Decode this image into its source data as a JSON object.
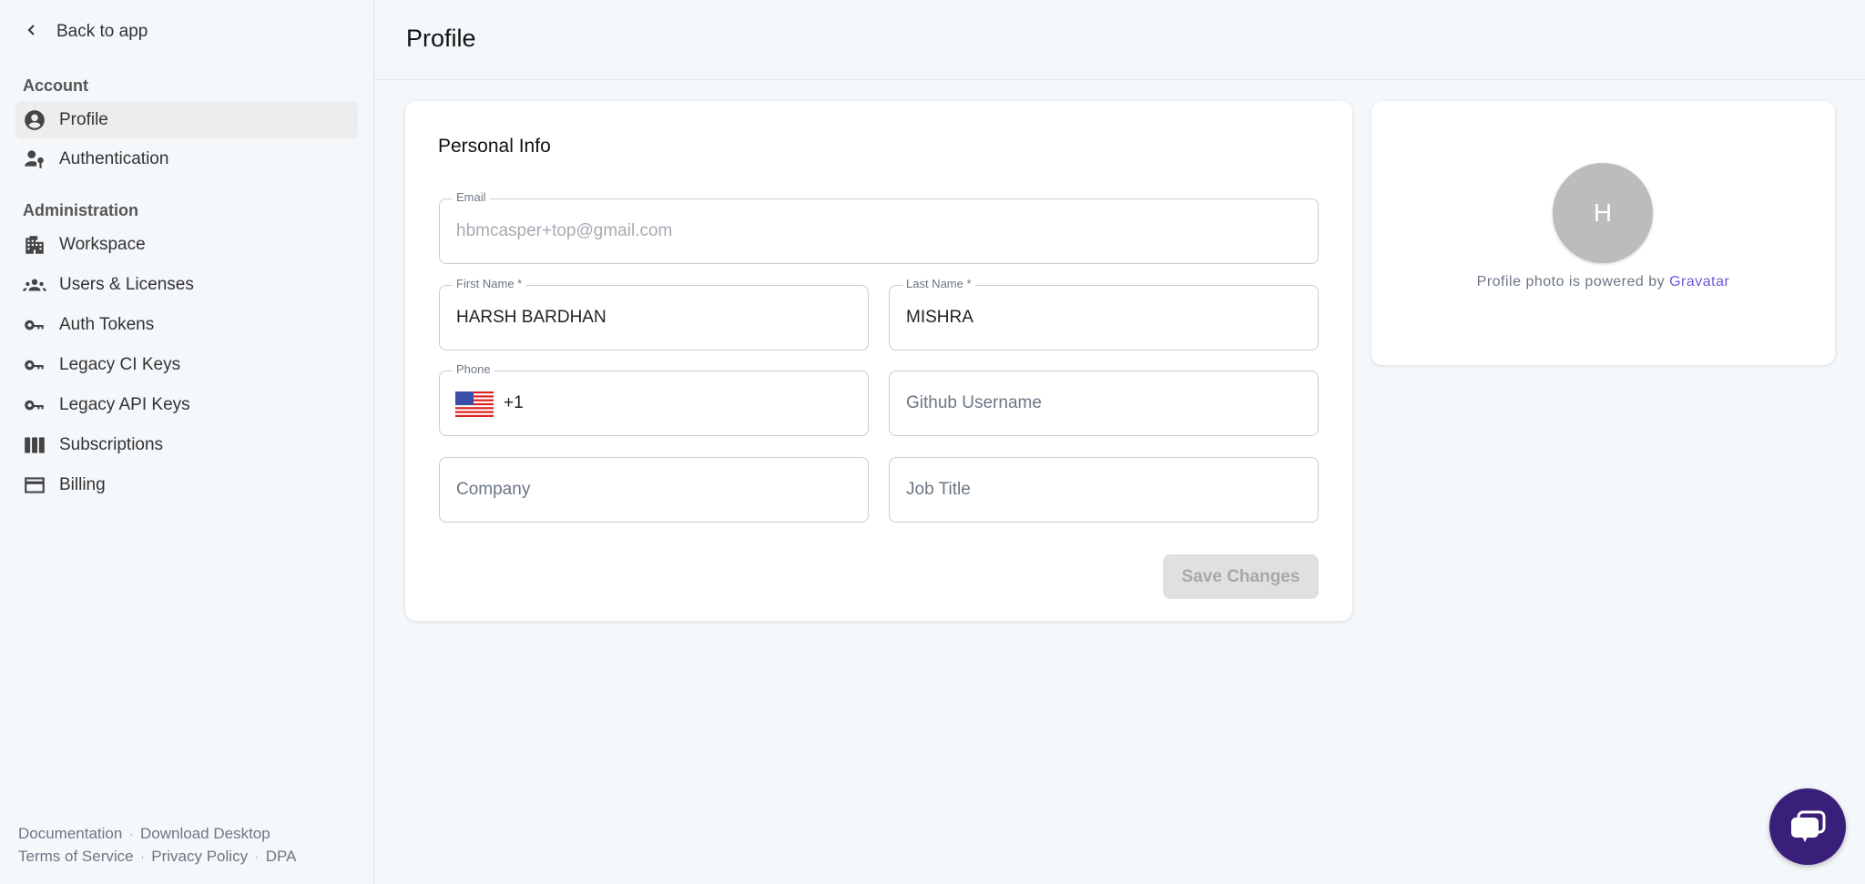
{
  "sidebar": {
    "back_label": "Back to app",
    "account_heading": "Account",
    "admin_heading": "Administration",
    "account_items": [
      {
        "label": "Profile",
        "icon": "account-circle-icon",
        "active": true
      },
      {
        "label": "Authentication",
        "icon": "user-key-icon"
      }
    ],
    "admin_items": [
      {
        "label": "Workspace",
        "icon": "building-icon"
      },
      {
        "label": "Users & Licenses",
        "icon": "group-icon"
      },
      {
        "label": "Auth Tokens",
        "icon": "key-icon"
      },
      {
        "label": "Legacy CI Keys",
        "icon": "key-icon"
      },
      {
        "label": "Legacy API Keys",
        "icon": "key-icon"
      },
      {
        "label": "Subscriptions",
        "icon": "columns-icon"
      },
      {
        "label": "Billing",
        "icon": "credit-card-icon"
      }
    ],
    "footer": {
      "documentation": "Documentation",
      "download": "Download Desktop",
      "terms": "Terms of Service",
      "privacy": "Privacy Policy",
      "dpa": "DPA",
      "separator": "·"
    }
  },
  "header": {
    "title": "Profile"
  },
  "personal_info": {
    "title": "Personal Info",
    "email": {
      "label": "Email",
      "value": "hbmcasper+top@gmail.com"
    },
    "first_name": {
      "label": "First Name *",
      "value": "HARSH BARDHAN"
    },
    "last_name": {
      "label": "Last Name *",
      "value": "MISHRA"
    },
    "phone": {
      "label": "Phone",
      "country_code": "+1",
      "flag": "us-flag-icon"
    },
    "github": {
      "placeholder": "Github Username"
    },
    "company": {
      "placeholder": "Company"
    },
    "job_title": {
      "placeholder": "Job Title"
    },
    "save_label": "Save Changes"
  },
  "photo": {
    "initial": "H",
    "caption": "Profile photo is powered by",
    "link": "Gravatar"
  },
  "colors": {
    "accent": "#6a5ad6",
    "chat": "#3a1f7a",
    "avatar": "#bcbcbc"
  }
}
